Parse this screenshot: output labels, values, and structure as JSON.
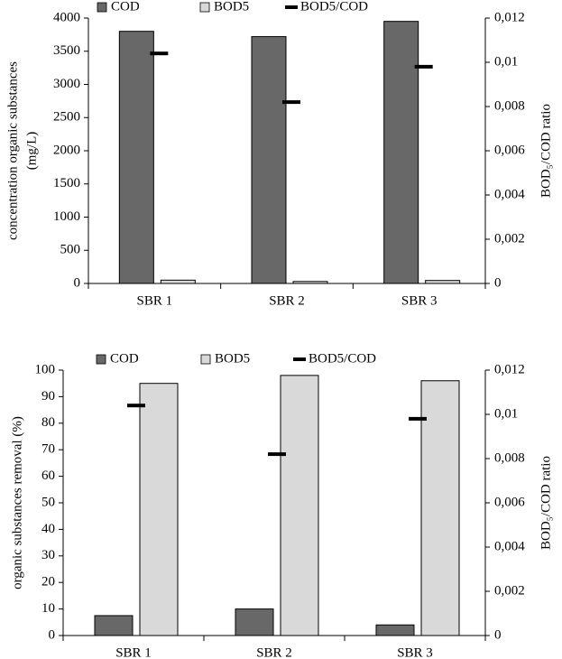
{
  "chart_data": [
    {
      "type": "bar",
      "categories": [
        "SBR 1",
        "SBR 2",
        "SBR 3"
      ],
      "ylabel": [
        "concentration organic substances",
        "(mg/L)"
      ],
      "y2label": "BOD₅/COD ratio",
      "series": [
        {
          "name": "COD",
          "color": "#686868",
          "values": [
            3800,
            3720,
            3950
          ]
        },
        {
          "name": "BOD5",
          "color": "#d9d9d9",
          "values": [
            50,
            30,
            45
          ]
        },
        {
          "name": "BOD5/COD",
          "color": "#000000",
          "axis": "y2",
          "values": [
            0.0104,
            0.0082,
            0.0098
          ]
        }
      ],
      "ylim": [
        0,
        4000
      ],
      "yticks": [
        0,
        500,
        1000,
        1500,
        2000,
        2500,
        3000,
        3500,
        4000
      ],
      "y2lim": [
        0,
        0.012
      ],
      "y2ticks": [
        0,
        {
          "value": 0.002,
          "label": "0,002"
        },
        {
          "value": 0.004,
          "label": "0,004"
        },
        {
          "value": 0.006,
          "label": "0,006"
        },
        {
          "value": 0.008,
          "label": "0,008"
        },
        {
          "value": 0.01,
          "label": "0,01"
        },
        {
          "value": 0.012,
          "label": "0,012"
        }
      ],
      "legend": "top"
    },
    {
      "type": "bar",
      "categories": [
        "SBR 1",
        "SBR 2",
        "SBR 3"
      ],
      "ylabel": [
        "organic substances removal (%)"
      ],
      "y2label": "BOD₅/COD ratio",
      "series": [
        {
          "name": "COD",
          "color": "#686868",
          "values": [
            7.5,
            10,
            4
          ]
        },
        {
          "name": "BOD5",
          "color": "#d9d9d9",
          "values": [
            95,
            98,
            96
          ]
        },
        {
          "name": "BOD5/COD",
          "color": "#000000",
          "axis": "y2",
          "values": [
            0.0104,
            0.0082,
            0.0098
          ]
        }
      ],
      "ylim": [
        0,
        100
      ],
      "yticks": [
        0,
        10,
        20,
        30,
        40,
        50,
        60,
        70,
        80,
        90,
        100
      ],
      "y2lim": [
        0,
        0.012
      ],
      "y2ticks": [
        0,
        {
          "value": 0.002,
          "label": "0,002"
        },
        {
          "value": 0.004,
          "label": "0,004"
        },
        {
          "value": 0.006,
          "label": "0,006"
        },
        {
          "value": 0.008,
          "label": "0,008"
        },
        {
          "value": 0.01,
          "label": "0,01"
        },
        {
          "value": 0.012,
          "label": "0,012"
        }
      ],
      "legend": "top"
    }
  ]
}
